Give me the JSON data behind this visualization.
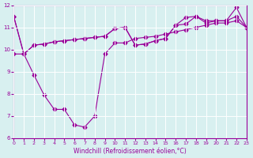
{
  "line1_x": [
    0,
    1,
    2,
    3,
    4,
    5,
    6,
    7,
    8,
    9,
    10,
    11,
    12,
    13,
    14,
    15,
    16,
    17,
    18,
    19,
    20,
    21,
    22,
    23
  ],
  "line1_y": [
    11.5,
    9.8,
    10.2,
    10.25,
    10.35,
    10.4,
    10.45,
    10.5,
    10.55,
    10.6,
    10.95,
    11.0,
    10.2,
    10.25,
    10.4,
    10.5,
    11.1,
    11.15,
    11.5,
    11.2,
    11.3,
    11.3,
    11.5,
    11.0
  ],
  "line2_x": [
    0,
    1,
    2,
    3,
    4,
    5,
    6,
    7,
    8,
    9,
    10,
    11,
    12,
    13,
    14,
    15,
    16,
    17,
    18,
    19,
    20,
    21,
    22,
    23
  ],
  "line2_y": [
    11.5,
    9.8,
    10.2,
    10.25,
    10.35,
    10.4,
    10.45,
    10.5,
    10.55,
    10.6,
    10.95,
    11.0,
    10.2,
    10.25,
    10.4,
    10.5,
    11.1,
    11.45,
    11.5,
    11.3,
    11.3,
    11.3,
    11.9,
    11.0
  ],
  "line3_x": [
    0,
    1,
    2,
    3,
    4,
    5,
    6,
    7,
    8,
    9,
    10,
    11,
    12,
    13,
    14,
    15,
    16,
    17,
    18,
    19,
    20,
    21,
    22,
    23
  ],
  "line3_y": [
    9.8,
    9.8,
    8.85,
    7.95,
    7.3,
    7.3,
    6.6,
    6.5,
    7.0,
    9.8,
    10.3,
    10.3,
    10.5,
    10.55,
    10.6,
    10.7,
    10.8,
    10.9,
    11.0,
    11.1,
    11.2,
    11.2,
    11.3,
    11.0
  ],
  "line_color": "#990099",
  "bg_color": "#d8f0f0",
  "xlabel": "Windchill (Refroidissement éolien,°C)",
  "ylim": [
    6,
    12
  ],
  "xlim": [
    0,
    23
  ],
  "yticks": [
    6,
    7,
    8,
    9,
    10,
    11,
    12
  ],
  "xticks": [
    0,
    1,
    2,
    3,
    4,
    5,
    6,
    7,
    8,
    9,
    10,
    11,
    12,
    13,
    14,
    15,
    16,
    17,
    18,
    19,
    20,
    21,
    22,
    23
  ]
}
